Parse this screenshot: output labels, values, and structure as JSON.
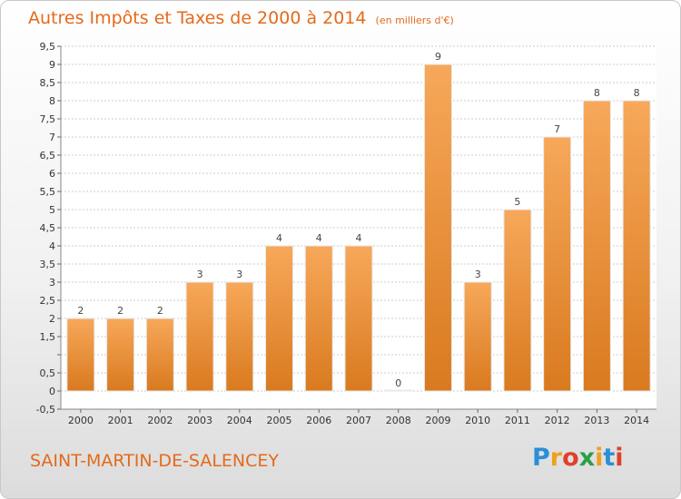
{
  "title": {
    "main": "Autres Impôts et Taxes de 2000 à 2014",
    "unit": "(en milliers d'€)"
  },
  "commune": "SAINT-MARTIN-DE-SALENCEY",
  "logo": {
    "text": "Proxiti",
    "letters": [
      {
        "ch": "P",
        "color": "#2a8fd6"
      },
      {
        "ch": "r",
        "color": "#f0a020"
      },
      {
        "ch": "o",
        "color": "#e0402a"
      },
      {
        "ch": "x",
        "color": "#2aa048"
      },
      {
        "ch": "i",
        "color": "#f0a020"
      },
      {
        "ch": "t",
        "color": "#2a8fd6"
      },
      {
        "ch": "i",
        "color": "#e0402a"
      }
    ]
  },
  "colors": {
    "title": "#e46a1c",
    "bar_light": "#f7a85a",
    "bar_dark": "#d97a1f",
    "grid": "#cccccc"
  },
  "chart_data": {
    "type": "bar",
    "categories": [
      "2000",
      "2001",
      "2002",
      "2003",
      "2004",
      "2005",
      "2006",
      "2007",
      "2008",
      "2009",
      "2010",
      "2011",
      "2012",
      "2013",
      "2014"
    ],
    "values": [
      2,
      2,
      2,
      3,
      3,
      4,
      4,
      4,
      0,
      9,
      3,
      5,
      7,
      8,
      8
    ],
    "data_labels": [
      "2",
      "2",
      "2",
      "3",
      "3",
      "4",
      "4",
      "4",
      "0",
      "9",
      "3",
      "5",
      "7",
      "8",
      "8"
    ],
    "yticks": [
      -0.5,
      0,
      0.5,
      1,
      1.5,
      2,
      2.5,
      3,
      3.5,
      4,
      4.5,
      5,
      5.5,
      6,
      6.5,
      7,
      7.5,
      8,
      8.5,
      9,
      9.5
    ],
    "ytick_labels": [
      "-0,5",
      "0",
      "0,5",
      "",
      "1,5",
      "2",
      "2,5",
      "3",
      "3,5",
      "4",
      "4,5",
      "5",
      "5,5",
      "6",
      "6,5",
      "7",
      "7,5",
      "8",
      "8,5",
      "9",
      "9,5"
    ],
    "ylim": [
      -0.5,
      9.5
    ],
    "grid": true
  }
}
